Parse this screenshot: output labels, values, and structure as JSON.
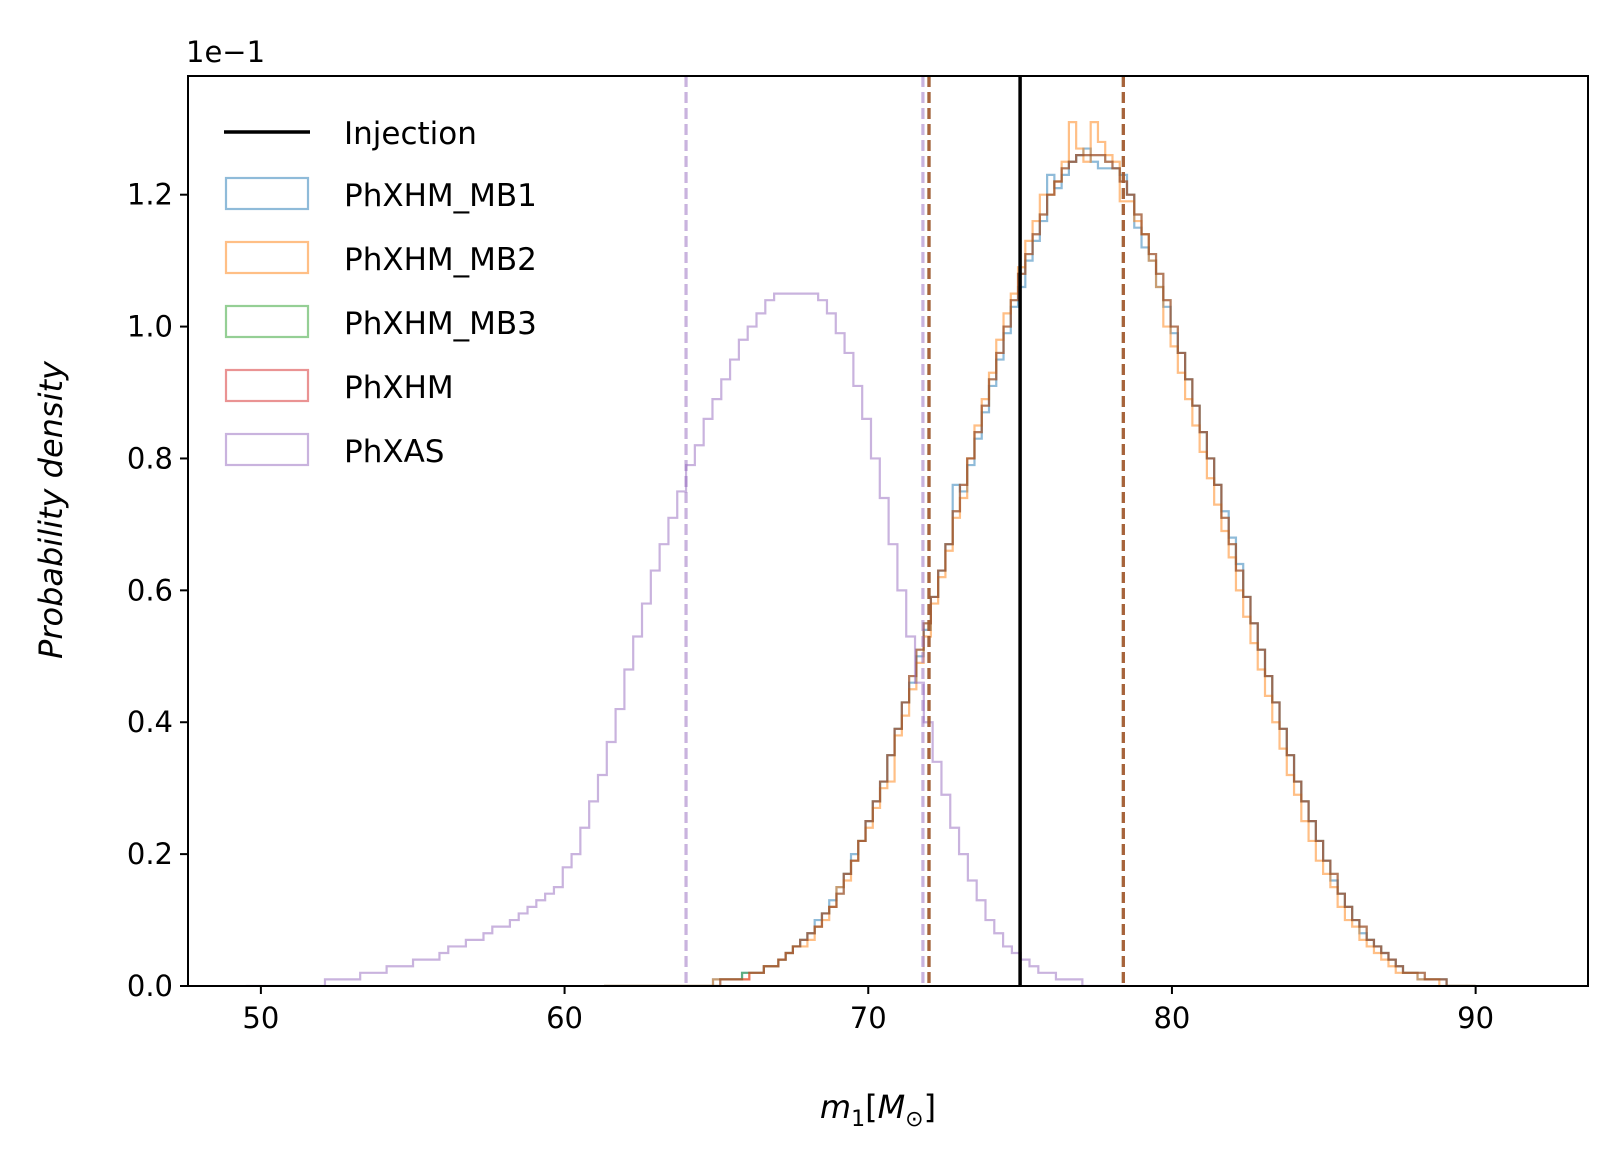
{
  "chart_data": {
    "type": "histogram",
    "xlabel": "m1[M⊙]",
    "xlabel_parts": {
      "symbol": "m",
      "sub": "1",
      "bracket_open": "[",
      "unit": "M",
      "unit_sub": "⊙",
      "bracket_close": "]"
    },
    "ylabel": "Probability density",
    "y_scale_label": "1e−1",
    "xlim": [
      47.6,
      93.7
    ],
    "ylim": [
      0,
      1.38
    ],
    "xticks": [
      50,
      60,
      70,
      80,
      90
    ],
    "xtick_labels": [
      "50",
      "60",
      "70",
      "80",
      "90"
    ],
    "yticks": [
      0.0,
      0.2,
      0.4,
      0.6,
      0.8,
      1.0,
      1.2
    ],
    "ytick_labels": [
      "0.0",
      "0.2",
      "0.4",
      "0.6",
      "0.8",
      "1.0",
      "1.2"
    ],
    "legend_position": "top-left",
    "injection": {
      "name": "Injection",
      "x": 75.0,
      "color": "#000000"
    },
    "series": [
      {
        "name": "PhXHM_MB1",
        "color": "#1f77b4",
        "legend": "PhXHM_MB1",
        "x_range": [
          61.3,
          90.0
        ],
        "bins": 120,
        "densities": [
          0.0,
          0.0,
          0.0,
          0.0,
          0.0,
          0.0,
          0.0,
          0.0,
          0.0,
          0.0,
          0.0,
          0.0,
          0.0,
          0.0,
          0.0,
          0.01,
          0.01,
          0.01,
          0.01,
          0.02,
          0.02,
          0.02,
          0.03,
          0.03,
          0.04,
          0.05,
          0.06,
          0.07,
          0.08,
          0.1,
          0.11,
          0.13,
          0.15,
          0.17,
          0.2,
          0.22,
          0.25,
          0.28,
          0.31,
          0.35,
          0.39,
          0.43,
          0.46,
          0.5,
          0.54,
          0.59,
          0.63,
          0.67,
          0.76,
          0.75,
          0.79,
          0.83,
          0.87,
          0.91,
          0.95,
          0.99,
          1.03,
          1.06,
          1.1,
          1.13,
          1.16,
          1.23,
          1.21,
          1.23,
          1.25,
          1.26,
          1.27,
          1.25,
          1.24,
          1.24,
          1.24,
          1.23,
          1.2,
          1.15,
          1.12,
          1.1,
          1.06,
          1.03,
          0.99,
          0.96,
          0.92,
          0.88,
          0.84,
          0.8,
          0.76,
          0.72,
          0.68,
          0.64,
          0.59,
          0.55,
          0.51,
          0.47,
          0.43,
          0.39,
          0.35,
          0.31,
          0.28,
          0.25,
          0.22,
          0.19,
          0.16,
          0.14,
          0.12,
          0.1,
          0.08,
          0.07,
          0.06,
          0.05,
          0.04,
          0.03,
          0.02,
          0.02,
          0.01,
          0.01,
          0.01,
          0.01,
          0.0,
          0.0,
          0.0,
          0.0
        ],
        "ci_lines": [
          72.0,
          78.4
        ]
      },
      {
        "name": "PhXHM_MB2",
        "color": "#ff7f0e",
        "legend": "PhXHM_MB2",
        "x_range": [
          61.3,
          90.0
        ],
        "bins": 120,
        "densities": [
          0.0,
          0.0,
          0.0,
          0.0,
          0.0,
          0.0,
          0.0,
          0.0,
          0.0,
          0.0,
          0.0,
          0.0,
          0.0,
          0.0,
          0.0,
          0.01,
          0.01,
          0.01,
          0.01,
          0.01,
          0.02,
          0.02,
          0.03,
          0.03,
          0.04,
          0.05,
          0.06,
          0.06,
          0.07,
          0.09,
          0.1,
          0.12,
          0.15,
          0.16,
          0.19,
          0.22,
          0.24,
          0.27,
          0.3,
          0.31,
          0.38,
          0.41,
          0.45,
          0.49,
          0.53,
          0.58,
          0.62,
          0.66,
          0.71,
          0.74,
          0.8,
          0.85,
          0.89,
          0.93,
          0.98,
          1.02,
          1.05,
          1.09,
          1.13,
          1.16,
          1.2,
          1.2,
          1.22,
          1.25,
          1.31,
          1.27,
          1.25,
          1.31,
          1.28,
          1.26,
          1.25,
          1.19,
          1.19,
          1.16,
          1.14,
          1.1,
          1.06,
          1.0,
          0.97,
          0.93,
          0.89,
          0.85,
          0.81,
          0.77,
          0.73,
          0.69,
          0.65,
          0.6,
          0.56,
          0.52,
          0.48,
          0.44,
          0.4,
          0.36,
          0.32,
          0.29,
          0.25,
          0.22,
          0.19,
          0.17,
          0.15,
          0.12,
          0.1,
          0.09,
          0.07,
          0.06,
          0.05,
          0.04,
          0.03,
          0.02,
          0.02,
          0.02,
          0.01,
          0.01,
          0.01,
          0.0,
          0.0,
          0.0,
          0.0,
          0.0
        ],
        "ci_lines": [
          72.0,
          78.4
        ]
      },
      {
        "name": "PhXHM_MB3",
        "color": "#2ca02c",
        "legend": "PhXHM_MB3",
        "x_range": [
          61.3,
          90.0
        ],
        "bins": 120,
        "densities": [
          0.0,
          0.0,
          0.0,
          0.0,
          0.0,
          0.0,
          0.0,
          0.0,
          0.0,
          0.0,
          0.0,
          0.0,
          0.0,
          0.0,
          0.0,
          0.0,
          0.01,
          0.01,
          0.01,
          0.02,
          0.02,
          0.02,
          0.03,
          0.03,
          0.04,
          0.05,
          0.06,
          0.07,
          0.08,
          0.09,
          0.11,
          0.12,
          0.14,
          0.17,
          0.19,
          0.22,
          0.25,
          0.28,
          0.31,
          0.35,
          0.39,
          0.43,
          0.47,
          0.51,
          0.55,
          0.59,
          0.63,
          0.67,
          0.72,
          0.76,
          0.8,
          0.84,
          0.88,
          0.92,
          0.96,
          1.0,
          1.04,
          1.08,
          1.11,
          1.14,
          1.17,
          1.2,
          1.22,
          1.24,
          1.25,
          1.26,
          1.26,
          1.26,
          1.26,
          1.25,
          1.24,
          1.22,
          1.2,
          1.17,
          1.14,
          1.11,
          1.08,
          1.04,
          1.0,
          0.96,
          0.92,
          0.88,
          0.84,
          0.8,
          0.76,
          0.71,
          0.67,
          0.63,
          0.59,
          0.55,
          0.51,
          0.47,
          0.43,
          0.39,
          0.35,
          0.31,
          0.28,
          0.25,
          0.22,
          0.19,
          0.17,
          0.14,
          0.12,
          0.1,
          0.09,
          0.07,
          0.06,
          0.05,
          0.04,
          0.03,
          0.02,
          0.02,
          0.02,
          0.01,
          0.01,
          0.01,
          0.0,
          0.0,
          0.0,
          0.0
        ],
        "ci_lines": [
          72.0,
          78.4
        ]
      },
      {
        "name": "PhXHM",
        "color": "#d62728",
        "legend": "PhXHM",
        "x_range": [
          61.3,
          90.0
        ],
        "bins": 120,
        "densities": [
          0.0,
          0.0,
          0.0,
          0.0,
          0.0,
          0.0,
          0.0,
          0.0,
          0.0,
          0.0,
          0.0,
          0.0,
          0.0,
          0.0,
          0.0,
          0.0,
          0.01,
          0.01,
          0.01,
          0.01,
          0.02,
          0.02,
          0.03,
          0.03,
          0.04,
          0.05,
          0.06,
          0.07,
          0.08,
          0.09,
          0.11,
          0.12,
          0.14,
          0.17,
          0.19,
          0.22,
          0.25,
          0.28,
          0.31,
          0.35,
          0.39,
          0.43,
          0.47,
          0.51,
          0.55,
          0.59,
          0.63,
          0.67,
          0.72,
          0.76,
          0.8,
          0.84,
          0.88,
          0.92,
          0.96,
          1.0,
          1.04,
          1.08,
          1.11,
          1.14,
          1.17,
          1.2,
          1.22,
          1.24,
          1.25,
          1.26,
          1.26,
          1.26,
          1.26,
          1.25,
          1.24,
          1.22,
          1.2,
          1.17,
          1.14,
          1.11,
          1.08,
          1.04,
          1.0,
          0.96,
          0.92,
          0.88,
          0.84,
          0.8,
          0.76,
          0.71,
          0.67,
          0.63,
          0.59,
          0.55,
          0.51,
          0.47,
          0.43,
          0.39,
          0.35,
          0.31,
          0.28,
          0.25,
          0.22,
          0.19,
          0.17,
          0.14,
          0.12,
          0.1,
          0.09,
          0.07,
          0.06,
          0.05,
          0.04,
          0.03,
          0.02,
          0.02,
          0.02,
          0.01,
          0.01,
          0.01,
          0.0,
          0.0,
          0.0,
          0.0
        ],
        "ci_lines": [
          72.0,
          78.4
        ]
      },
      {
        "name": "PhXAS",
        "color": "#9467bd",
        "legend": "PhXAS",
        "x_range": [
          49.5,
          78.5
        ],
        "bins": 100,
        "densities": [
          0.0,
          0.0,
          0.0,
          0.0,
          0.0,
          0.0,
          0.0,
          0.0,
          0.0,
          0.01,
          0.01,
          0.01,
          0.01,
          0.02,
          0.02,
          0.02,
          0.03,
          0.03,
          0.03,
          0.04,
          0.04,
          0.04,
          0.05,
          0.06,
          0.06,
          0.07,
          0.07,
          0.08,
          0.09,
          0.09,
          0.1,
          0.11,
          0.12,
          0.13,
          0.14,
          0.15,
          0.18,
          0.2,
          0.24,
          0.28,
          0.32,
          0.37,
          0.42,
          0.48,
          0.53,
          0.58,
          0.63,
          0.67,
          0.71,
          0.75,
          0.79,
          0.82,
          0.86,
          0.89,
          0.92,
          0.95,
          0.98,
          1.0,
          1.02,
          1.04,
          1.05,
          1.05,
          1.05,
          1.05,
          1.05,
          1.04,
          1.02,
          0.99,
          0.96,
          0.91,
          0.86,
          0.8,
          0.74,
          0.67,
          0.6,
          0.53,
          0.46,
          0.4,
          0.34,
          0.29,
          0.24,
          0.2,
          0.16,
          0.13,
          0.1,
          0.08,
          0.06,
          0.05,
          0.04,
          0.03,
          0.02,
          0.02,
          0.01,
          0.01,
          0.01,
          0.0,
          0.0,
          0.0,
          0.0,
          0.0
        ],
        "ci_lines": [
          64.0,
          71.8
        ]
      }
    ]
  }
}
